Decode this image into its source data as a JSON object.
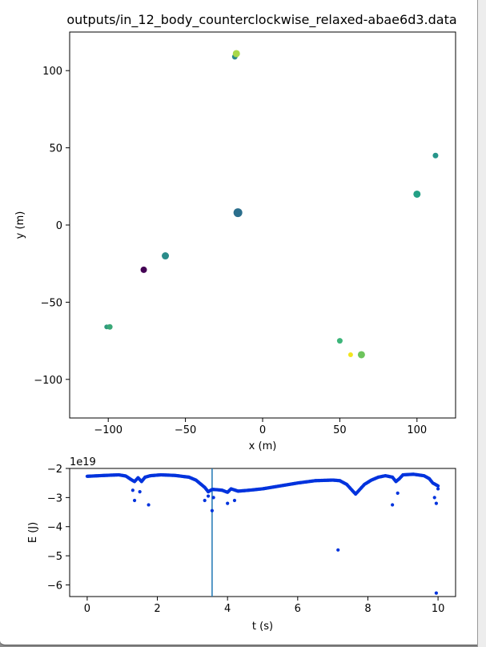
{
  "window": {
    "background": "#ffffff"
  },
  "chart_data": [
    {
      "type": "scatter",
      "title": "outputs/in_12_body_counterclockwise_relaxed-abae6d3.data",
      "xlabel": "x (m)",
      "ylabel": "y (m)",
      "xlim": [
        -125,
        125
      ],
      "ylim": [
        -125,
        125
      ],
      "xticks": [
        -100,
        -50,
        0,
        50,
        100
      ],
      "yticks": [
        -100,
        -50,
        0,
        50,
        100
      ],
      "xtick_labels": [
        "−100",
        "−50",
        "0",
        "50",
        "100"
      ],
      "ytick_labels": [
        "−100",
        "−50",
        "0",
        "50",
        "100"
      ],
      "grid": false,
      "points": [
        {
          "x": -18,
          "y": 109,
          "r": 3.5,
          "color": "#2a8a8a"
        },
        {
          "x": -17,
          "y": 111,
          "r": 4.5,
          "color": "#a8d84a"
        },
        {
          "x": -16,
          "y": 8,
          "r": 5.5,
          "color": "#2b6e8c"
        },
        {
          "x": 100,
          "y": 20,
          "r": 4.5,
          "color": "#23a085"
        },
        {
          "x": 112,
          "y": 45,
          "r": 3.5,
          "color": "#26958a"
        },
        {
          "x": -63,
          "y": -20,
          "r": 4.5,
          "color": "#2a8c8a"
        },
        {
          "x": -77,
          "y": -29,
          "r": 4.0,
          "color": "#440154"
        },
        {
          "x": -101,
          "y": -66,
          "r": 3.0,
          "color": "#2e9a7e"
        },
        {
          "x": -99,
          "y": -66,
          "r": 3.5,
          "color": "#3aa877"
        },
        {
          "x": 50,
          "y": -75,
          "r": 3.5,
          "color": "#3db57a"
        },
        {
          "x": 57,
          "y": -84,
          "r": 3.0,
          "color": "#f2e51d"
        },
        {
          "x": 64,
          "y": -84,
          "r": 4.5,
          "color": "#6dc45c"
        }
      ]
    },
    {
      "type": "scatter",
      "xlabel": "t (s)",
      "ylabel": "E (J)",
      "offset_text": "1e19",
      "xlim": [
        -0.5,
        10.5
      ],
      "ylim": [
        -6.4,
        -2.0
      ],
      "xticks": [
        0,
        2,
        4,
        6,
        8,
        10
      ],
      "yticks": [
        -2,
        -3,
        -4,
        -5,
        -6
      ],
      "xtick_labels": [
        "0",
        "2",
        "4",
        "6",
        "8",
        "10"
      ],
      "ytick_labels": [
        "−2",
        "−3",
        "−4",
        "−5",
        "−6"
      ],
      "marker_color": "#0033dd",
      "vline": {
        "x": 3.56,
        "color": "#1f77b4"
      },
      "baseline": [
        [
          0,
          -2.27
        ],
        [
          0.5,
          -2.24
        ],
        [
          0.9,
          -2.22
        ],
        [
          1.1,
          -2.26
        ],
        [
          1.25,
          -2.38
        ],
        [
          1.35,
          -2.45
        ],
        [
          1.45,
          -2.32
        ],
        [
          1.55,
          -2.45
        ],
        [
          1.65,
          -2.3
        ],
        [
          1.8,
          -2.25
        ],
        [
          2.1,
          -2.22
        ],
        [
          2.5,
          -2.24
        ],
        [
          2.9,
          -2.3
        ],
        [
          3.1,
          -2.4
        ],
        [
          3.25,
          -2.55
        ],
        [
          3.35,
          -2.65
        ],
        [
          3.45,
          -2.8
        ],
        [
          3.56,
          -2.72
        ],
        [
          3.7,
          -2.73
        ],
        [
          3.85,
          -2.75
        ],
        [
          4.0,
          -2.82
        ],
        [
          4.1,
          -2.7
        ],
        [
          4.3,
          -2.78
        ],
        [
          4.6,
          -2.75
        ],
        [
          5.0,
          -2.7
        ],
        [
          5.5,
          -2.6
        ],
        [
          6.0,
          -2.5
        ],
        [
          6.5,
          -2.42
        ],
        [
          7.0,
          -2.4
        ],
        [
          7.2,
          -2.42
        ],
        [
          7.4,
          -2.55
        ],
        [
          7.55,
          -2.75
        ],
        [
          7.65,
          -2.88
        ],
        [
          7.75,
          -2.75
        ],
        [
          7.9,
          -2.55
        ],
        [
          8.1,
          -2.4
        ],
        [
          8.3,
          -2.3
        ],
        [
          8.5,
          -2.25
        ],
        [
          8.7,
          -2.3
        ],
        [
          8.8,
          -2.45
        ],
        [
          8.9,
          -2.35
        ],
        [
          9.0,
          -2.22
        ],
        [
          9.3,
          -2.2
        ],
        [
          9.6,
          -2.25
        ],
        [
          9.75,
          -2.35
        ],
        [
          9.85,
          -2.5
        ],
        [
          10.0,
          -2.6
        ]
      ],
      "outliers": [
        {
          "t": 1.3,
          "E": -2.75
        },
        {
          "t": 1.35,
          "E": -3.1
        },
        {
          "t": 1.5,
          "E": -2.8
        },
        {
          "t": 1.75,
          "E": -3.25
        },
        {
          "t": 3.35,
          "E": -3.1
        },
        {
          "t": 3.45,
          "E": -2.95
        },
        {
          "t": 3.56,
          "E": -3.45
        },
        {
          "t": 3.6,
          "E": -3.0
        },
        {
          "t": 4.0,
          "E": -3.2
        },
        {
          "t": 4.2,
          "E": -3.1
        },
        {
          "t": 7.15,
          "E": -4.8
        },
        {
          "t": 8.7,
          "E": -3.25
        },
        {
          "t": 8.85,
          "E": -2.85
        },
        {
          "t": 9.9,
          "E": -3.0
        },
        {
          "t": 9.95,
          "E": -3.2
        },
        {
          "t": 9.95,
          "E": -6.28
        },
        {
          "t": 10.0,
          "E": -2.7
        }
      ]
    }
  ]
}
